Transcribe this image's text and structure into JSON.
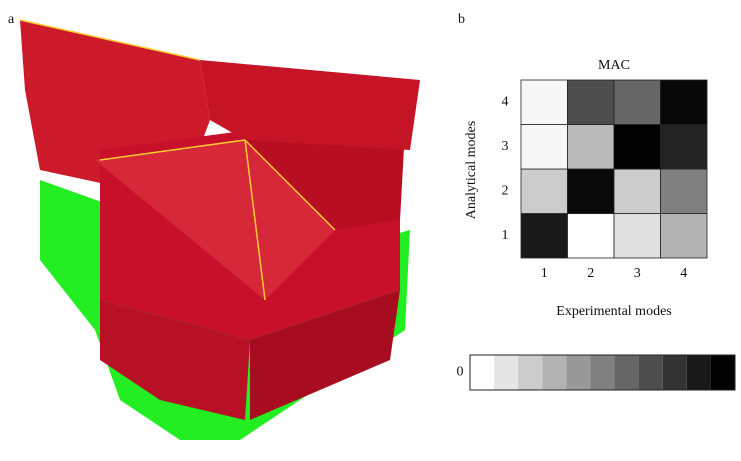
{
  "image_panel": {
    "label": "a"
  },
  "chart_data": {
    "type": "heatmap",
    "panel_label": "b",
    "title": "MAC",
    "x_label": "Experimental modes",
    "y_label": "Analytical modes",
    "x_categories": [
      "1",
      "2",
      "3",
      "4"
    ],
    "y_categories": [
      "1",
      "2",
      "3",
      "4"
    ],
    "values": [
      [
        0.9,
        0.0,
        0.12,
        0.3
      ],
      [
        0.2,
        0.96,
        0.2,
        0.5
      ],
      [
        0.03,
        0.27,
        1.0,
        0.86
      ],
      [
        0.03,
        0.7,
        0.6,
        0.97
      ]
    ],
    "clim": [
      0,
      1
    ],
    "colorbar_ticks": [
      0
    ],
    "colorbar_levels": 11
  }
}
